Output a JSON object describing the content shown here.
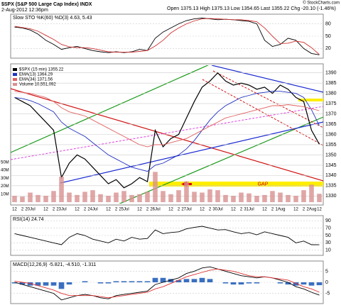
{
  "header": {
    "title": "$SPX (S&P 500 Large Cap Index) INDX",
    "date": "2-Aug-2012 12:36pm",
    "quote": "Open 1375.13 High 1375.13 Low 1354.65 Last 1355.22 Chg -20.10 (-1.46%)",
    "credit": "© StockCharts.com",
    "annotation": "GAP"
  },
  "chart_data": [
    {
      "type": "line",
      "title": "Slow STO %K(60) %D(3) 4.63, 5.43",
      "ylim": [
        0,
        100
      ],
      "yticks": [
        20,
        50,
        80
      ],
      "grid": true,
      "series": [
        {
          "color": "#000000",
          "values": [
            72,
            70,
            65,
            55,
            40,
            30,
            18,
            22,
            25,
            20,
            15,
            12,
            10,
            12,
            10,
            12,
            18,
            15,
            45,
            60,
            70,
            80,
            88,
            92,
            94,
            92,
            90,
            91,
            90,
            88,
            86,
            80,
            40,
            25,
            30,
            45,
            40,
            20,
            8,
            4.63
          ]
        },
        {
          "color": "#d03030",
          "values": [
            74,
            71,
            68,
            62,
            52,
            42,
            30,
            24,
            22,
            22,
            20,
            16,
            12,
            11,
            11,
            11,
            13,
            15,
            26,
            40,
            58,
            70,
            80,
            87,
            92,
            93,
            92,
            91,
            90,
            90,
            88,
            85,
            70,
            50,
            32,
            33,
            38,
            35,
            22,
            5.43
          ]
        }
      ]
    },
    {
      "type": "line",
      "ylim": [
        1327,
        1393
      ],
      "yticks": [
        1330,
        1335,
        1340,
        1345,
        1350,
        1355,
        1360,
        1365,
        1370,
        1375,
        1380,
        1385,
        1390
      ],
      "grid": true,
      "categories": [
        "12",
        "2",
        "20Jul",
        null,
        "12",
        "2",
        "23Jul",
        null,
        "12",
        "2",
        "24Jul",
        null,
        "12",
        "2",
        "25Jul",
        null,
        "12",
        "2",
        "26Jul",
        null,
        "12",
        "2",
        "27Jul",
        null,
        "12",
        "2",
        "30Jul",
        null,
        "12",
        "2",
        "31Jul",
        null,
        "12",
        "2",
        "1Aug",
        null,
        "12",
        "2",
        "2Aug",
        "12"
      ],
      "series": [
        {
          "name": "$SPX (15 min) 1355.22",
          "color": "#000000",
          "values": [
            1378,
            1376,
            1374,
            1370,
            1366,
            1362,
            1339,
            1346,
            1350,
            1348,
            1344,
            1340,
            1336,
            1338,
            1334,
            1336,
            1339,
            1337,
            1362,
            1354,
            1358,
            1360,
            1368,
            1376,
            1383,
            1386,
            1390,
            1386,
            1384,
            1385,
            1384,
            1382,
            1383,
            1380,
            1384,
            1382,
            1378,
            1376,
            1362,
            1355.22
          ]
        },
        {
          "name": "EMA(13) 1364.29",
          "color": "#2030c0",
          "values": [
            1378,
            1377.5,
            1376.5,
            1375,
            1373,
            1371,
            1366,
            1363,
            1361,
            1359,
            1356,
            1353,
            1350,
            1348,
            1346,
            1344,
            1343,
            1342,
            1345,
            1346,
            1348,
            1350,
            1353,
            1357,
            1362,
            1367,
            1371,
            1374,
            1376,
            1378,
            1379,
            1380,
            1380.5,
            1381,
            1381,
            1380.5,
            1380,
            1378,
            1372,
            1364.29
          ]
        },
        {
          "name": "EMA(34) 1371.56",
          "color": "#e06060",
          "values": [
            1381,
            1380.5,
            1380,
            1379,
            1378,
            1376,
            1373,
            1371,
            1370,
            1369,
            1367,
            1365,
            1363,
            1361,
            1359,
            1357,
            1355,
            1354,
            1355,
            1355,
            1356,
            1357,
            1358,
            1360,
            1362,
            1364,
            1366,
            1368,
            1369,
            1370,
            1371,
            1372,
            1373,
            1374,
            1374,
            1374.5,
            1374,
            1373.5,
            1372.5,
            1371.56
          ]
        }
      ]
    },
    {
      "type": "bar",
      "ylim": [
        0,
        170000000
      ],
      "yaxis_position": "left",
      "yticks": [
        {
          "value": 10000000,
          "label": "10M"
        },
        {
          "value": 20000000,
          "label": "20M"
        },
        {
          "value": 30000000,
          "label": "30M"
        },
        {
          "value": 40000000,
          "label": "40M"
        },
        {
          "value": 50000000,
          "label": "50M"
        }
      ],
      "series": [
        {
          "name": "Volume 10,551,092",
          "color": "#d89090",
          "values": [
            8000000,
            7000000,
            12000000,
            9000000,
            8000000,
            14000000,
            32000000,
            12000000,
            9000000,
            13000000,
            15000000,
            10000000,
            8000000,
            12000000,
            14000000,
            9000000,
            10000000,
            13000000,
            38000000,
            14000000,
            10000000,
            15000000,
            26000000,
            13000000,
            12000000,
            16000000,
            15000000,
            9000000,
            8000000,
            12000000,
            11000000,
            8000000,
            9000000,
            14000000,
            12000000,
            9000000,
            8000000,
            15000000,
            22000000,
            10551092
          ]
        }
      ]
    },
    {
      "type": "line",
      "title": "RSI(14) 24.74",
      "ylim": [
        0,
        100
      ],
      "yticks": [
        10,
        30,
        50,
        70,
        90
      ],
      "grid": true,
      "series": [
        {
          "color": "#000000",
          "values": [
            55,
            50,
            45,
            40,
            35,
            30,
            25,
            45,
            55,
            50,
            40,
            35,
            30,
            40,
            35,
            45,
            40,
            42,
            65,
            55,
            58,
            60,
            68,
            72,
            75,
            70,
            65,
            66,
            60,
            55,
            58,
            52,
            60,
            55,
            50,
            45,
            30,
            35,
            25,
            24.74
          ]
        }
      ]
    },
    {
      "type": "line",
      "title": "MACD(12,26,9) -5.821, -4.510, -1.311",
      "ylim": [
        -9,
        9
      ],
      "yticks": [
        -5,
        0,
        5
      ],
      "grid": true,
      "series": [
        {
          "color": "#000000",
          "values": [
            0,
            -1,
            -2,
            -3,
            -4,
            -5,
            -8,
            -7,
            -6,
            -5.5,
            -6,
            -7,
            -7.5,
            -6,
            -5.5,
            -5,
            -4.5,
            -4,
            -1,
            0,
            1,
            2,
            4,
            5,
            6.5,
            7,
            6,
            5,
            4,
            3,
            2.5,
            2,
            2.5,
            2,
            1,
            0,
            -2,
            -3,
            -4.5,
            -5.821
          ]
        },
        {
          "color": "#e03030",
          "values": [
            0.5,
            0,
            -0.5,
            -1.5,
            -2.5,
            -3.5,
            -5,
            -6,
            -6,
            -6,
            -6,
            -6.5,
            -7,
            -6.5,
            -6,
            -5.5,
            -5,
            -4.5,
            -3,
            -2,
            -0.5,
            1,
            2.5,
            3.5,
            4.5,
            5.5,
            6,
            5.5,
            5,
            4,
            3,
            2.5,
            2.5,
            2,
            1.5,
            1,
            -0.5,
            -2,
            -3,
            -4.51
          ]
        }
      ],
      "histogram": {
        "color": "#3a6fc0",
        "values": [
          -0.5,
          -1,
          -1.5,
          -1.5,
          -1.5,
          -1.5,
          -3,
          -1,
          0,
          0.5,
          0,
          -0.5,
          -0.5,
          0.5,
          0.5,
          0.5,
          0.5,
          0.5,
          2,
          2,
          1.5,
          1,
          1.5,
          1.5,
          2,
          1.5,
          0,
          -0.5,
          -1,
          -1,
          -0.5,
          -0.5,
          0,
          0,
          -0.5,
          -1,
          -1.5,
          -1,
          -1.5,
          -1.311
        ]
      }
    }
  ]
}
